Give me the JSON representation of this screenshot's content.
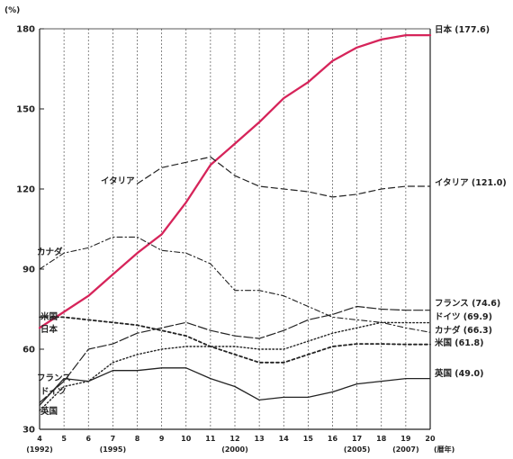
{
  "chart_data": {
    "type": "line",
    "y_unit": "(%)",
    "x_unit": "(暦年)",
    "ylim": [
      30,
      180
    ],
    "yticks": [
      30,
      60,
      90,
      120,
      150,
      180
    ],
    "x": [
      4,
      5,
      6,
      7,
      8,
      9,
      10,
      11,
      12,
      13,
      14,
      15,
      16,
      17,
      18,
      19,
      20
    ],
    "xtick_labels": [
      "4",
      "5",
      "6",
      "7",
      "8",
      "9",
      "10",
      "11",
      "12",
      "13",
      "14",
      "15",
      "16",
      "17",
      "18",
      "19",
      "20"
    ],
    "year_labels": [
      {
        "x": 4,
        "text": "(1992)"
      },
      {
        "x": 7,
        "text": "(1995)"
      },
      {
        "x": 12,
        "text": "(2000)"
      },
      {
        "x": 17,
        "text": "(2005)"
      },
      {
        "x": 19,
        "text": "(2007)"
      }
    ],
    "grid": "vertical dashed",
    "series": [
      {
        "name": "日本",
        "end_label": "日本 (177.6)",
        "start_label": "日本",
        "color": "#d6245a",
        "style": "solid-thick",
        "values": [
          68,
          74,
          80,
          88,
          96,
          103,
          115,
          129,
          137,
          145,
          154,
          160,
          168,
          173,
          176,
          177.6,
          177.6
        ]
      },
      {
        "name": "イタリア",
        "end_label": "イタリア (121.0)",
        "start_label": "イタリア",
        "color": "#222222",
        "style": "dashed",
        "values": [
          null,
          null,
          null,
          null,
          122,
          128,
          130,
          132,
          125,
          121,
          120,
          119,
          117,
          118,
          120,
          121,
          121
        ]
      },
      {
        "name": "カナダ",
        "end_label": "カナダ (66.3)",
        "start_label": "カナダ",
        "color": "#222222",
        "style": "dashdot",
        "values": [
          90,
          96,
          98,
          102,
          102,
          97,
          96,
          92,
          82,
          82,
          80,
          76,
          72,
          71,
          70,
          68,
          66.3
        ]
      },
      {
        "name": "フランス",
        "end_label": "フランス (74.6)",
        "start_label": "フランス",
        "color": "#222222",
        "style": "longdash",
        "values": [
          40,
          48,
          60,
          62,
          66,
          68,
          70,
          67,
          65,
          64,
          67,
          71,
          73,
          76,
          75,
          74.6,
          74.6
        ]
      },
      {
        "name": "ドイツ",
        "end_label": "ドイツ (69.9)",
        "start_label": "ドイツ",
        "color": "#222222",
        "style": "dotted",
        "values": [
          37,
          46,
          48,
          55,
          58,
          60,
          61,
          61,
          61,
          60,
          60,
          63,
          66,
          68,
          70,
          69.9,
          69.9
        ]
      },
      {
        "name": "米国",
        "end_label": "米国 (61.8)",
        "start_label": "米国",
        "color": "#222222",
        "style": "shortdash",
        "values": [
          72,
          72,
          71,
          70,
          69,
          67,
          65,
          61,
          58,
          55,
          55,
          58,
          61,
          62,
          62,
          61.8,
          61.8
        ]
      },
      {
        "name": "英国",
        "end_label": "英国 (49.0)",
        "start_label": "英国",
        "color": "#222222",
        "style": "solid-thin",
        "values": [
          39,
          49,
          48,
          52,
          52,
          53,
          53,
          49,
          46,
          41,
          42,
          42,
          44,
          47,
          48,
          49,
          49
        ]
      }
    ]
  }
}
